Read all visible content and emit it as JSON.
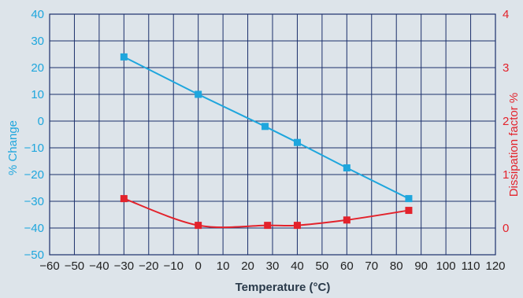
{
  "chart_data": {
    "type": "line",
    "title": "",
    "xlabel": "Temperature (°C)",
    "ylabel_left": "% Change",
    "ylabel_right": "Dissipation factor %",
    "xlim": [
      -60,
      120
    ],
    "ylim_left": [
      -50,
      40
    ],
    "ylim_right": [
      -0.5,
      4
    ],
    "x_ticks": [
      -60,
      -50,
      -40,
      -30,
      -20,
      -10,
      0,
      10,
      20,
      30,
      40,
      50,
      60,
      70,
      80,
      90,
      100,
      110,
      120
    ],
    "y_left_ticks": [
      -50,
      -40,
      -30,
      -20,
      -10,
      0,
      10,
      20,
      30,
      40
    ],
    "y_right_ticks": [
      0,
      1,
      2,
      3,
      4
    ],
    "grid": true,
    "series": [
      {
        "axis": "left",
        "color": "#1ea6dd",
        "marker": "square",
        "curve": "linear",
        "x": [
          -30,
          0,
          27,
          40,
          60,
          85
        ],
        "y": [
          24,
          10,
          -2,
          -8,
          -17.5,
          -29
        ]
      },
      {
        "axis": "right",
        "color": "#e3222b",
        "marker": "square",
        "curve": "smooth",
        "x": [
          -30,
          0,
          28,
          40,
          60,
          85
        ],
        "y": [
          0.55,
          0.05,
          0.05,
          0.05,
          0.15,
          0.33
        ]
      }
    ],
    "colors": {
      "background": "#dde4ea",
      "grid": "#1b2f6b",
      "left_axis": "#1ea6dd",
      "right_axis": "#e3222b",
      "x_axis_text": "#222222",
      "x_title": "#2a3a4a"
    }
  }
}
